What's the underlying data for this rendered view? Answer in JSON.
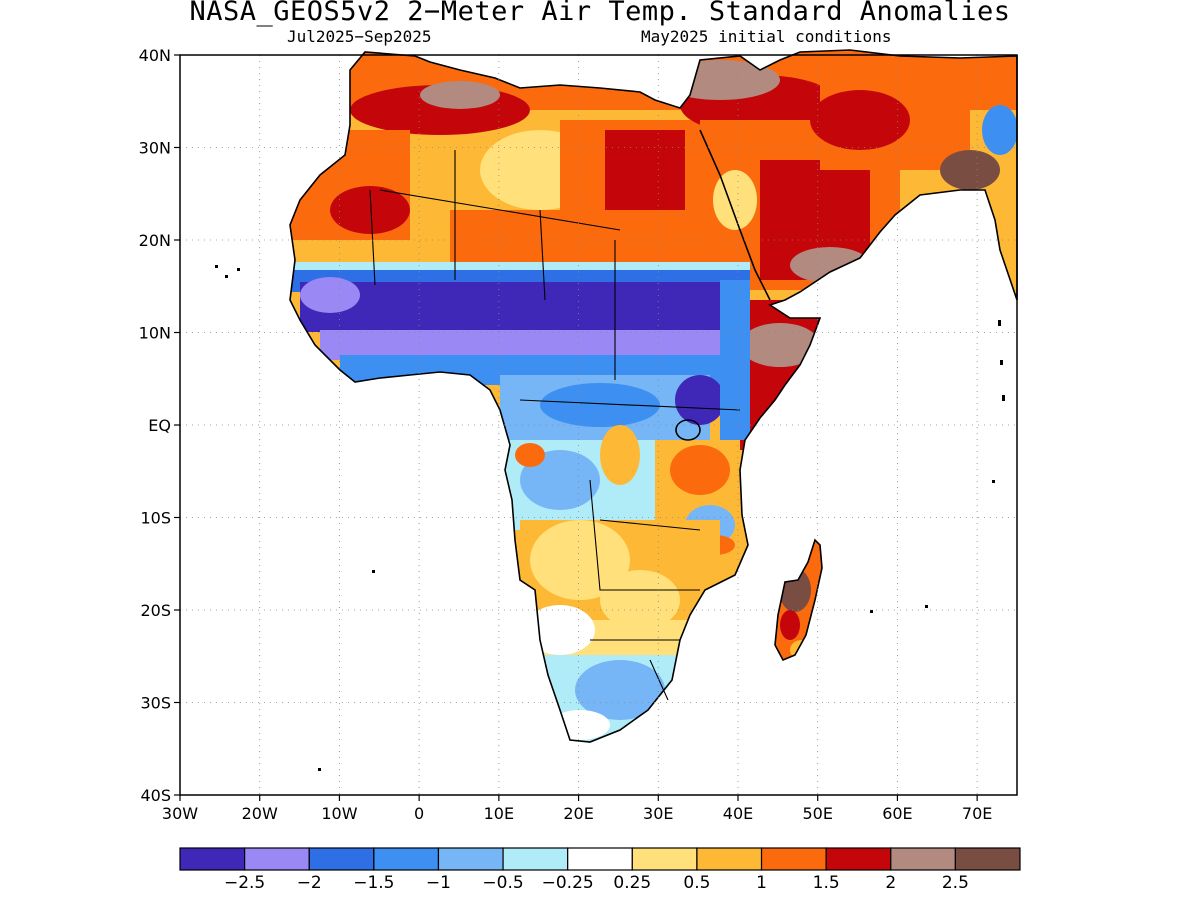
{
  "title": "NASA_GEOS5v2 2−Meter Air Temp. Standard Anomalies",
  "subtitle_left": "Jul2025−Sep2025",
  "subtitle_right": "May2025 initial conditions",
  "axes": {
    "lat_labels": [
      "40N",
      "30N",
      "20N",
      "10N",
      "EQ",
      "10S",
      "20S",
      "30S",
      "40S"
    ],
    "lon_labels": [
      "30W",
      "20W",
      "10W",
      "0",
      "10E",
      "20E",
      "30E",
      "40E",
      "50E",
      "60E",
      "70E"
    ],
    "lat_range": [
      -40,
      40
    ],
    "lon_range": [
      -30,
      75
    ],
    "grid": "dotted"
  },
  "colorbar": {
    "colors": [
      "#3f28b8",
      "#9a88f4",
      "#2f6fe6",
      "#3d90f2",
      "#76b6f6",
      "#b0ecf8",
      "#ffffff",
      "#ffe07a",
      "#fdb936",
      "#fb6b0e",
      "#c4060a",
      "#b38a7f",
      "#7a4d42"
    ],
    "labels": [
      "−2.5",
      "−2",
      "−1.5",
      "−1",
      "−0.5",
      "−0.25",
      "0.25",
      "0.5",
      "1",
      "1.5",
      "2",
      "2.5"
    ]
  }
}
